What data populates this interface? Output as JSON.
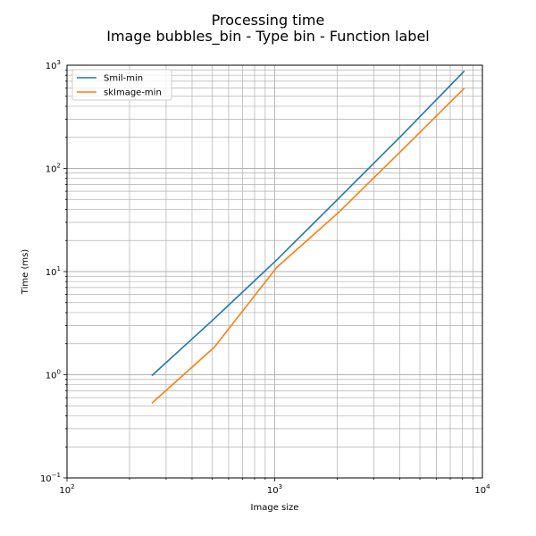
{
  "title": {
    "line1": "Processing time",
    "line2": "Image bubbles_bin - Type bin - Function label"
  },
  "chart_data": {
    "type": "line",
    "title": "Processing time\nImage bubbles_bin - Type bin - Function label",
    "xlabel": "Image size",
    "ylabel": "Time (ms)",
    "xscale": "log",
    "yscale": "log",
    "xlim": [
      100,
      10000
    ],
    "ylim": [
      0.1,
      1000
    ],
    "grid": "both major and minor",
    "legend_position": "top-left",
    "x_ticks": [
      {
        "base": "10",
        "exp": "2",
        "value": 100
      },
      {
        "base": "10",
        "exp": "3",
        "value": 1000
      },
      {
        "base": "10",
        "exp": "4",
        "value": 10000
      }
    ],
    "y_ticks": [
      {
        "base": "10",
        "exp": "−1",
        "value": 0.1
      },
      {
        "base": "10",
        "exp": "0",
        "value": 1
      },
      {
        "base": "10",
        "exp": "1",
        "value": 10
      },
      {
        "base": "10",
        "exp": "2",
        "value": 100
      },
      {
        "base": "10",
        "exp": "3",
        "value": 1000
      }
    ],
    "series": [
      {
        "name": "Smil-min",
        "color": "#1f77b4",
        "x": [
          256,
          512,
          1024,
          2048,
          4096,
          8192
        ],
        "y": [
          0.98,
          3.5,
          13,
          52,
          210,
          880
        ]
      },
      {
        "name": "skImage-min",
        "color": "#ff7f0e",
        "x": [
          256,
          512,
          1024,
          2048,
          4096,
          8192
        ],
        "y": [
          0.53,
          1.85,
          11,
          38,
          150,
          600
        ]
      }
    ]
  }
}
